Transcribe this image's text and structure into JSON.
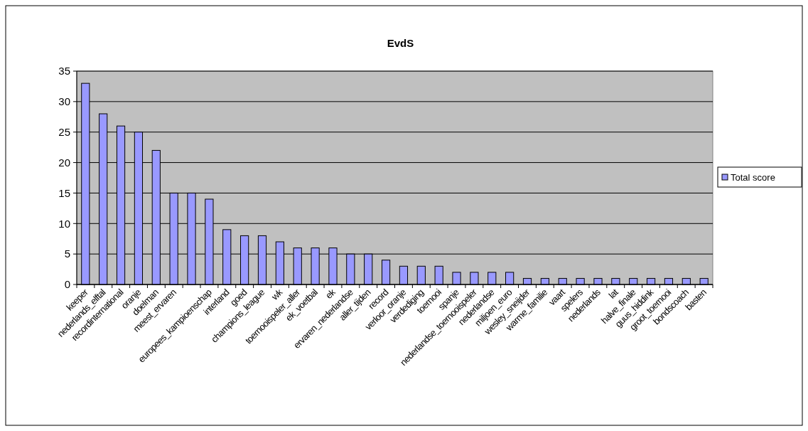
{
  "chart_data": {
    "type": "bar",
    "title": "EvdS",
    "categories": [
      "keeper",
      "nederlands_elftal",
      "recordinternational",
      "oranje",
      "doelman",
      "meest_ervaren",
      null,
      "europees_kampioenschap",
      "interland",
      "goed",
      "champions_league",
      "wk",
      "toernooispeler_aller",
      "ek_voetbal",
      "ek",
      "ervaren_nederlandse",
      "aller_tijden",
      "record",
      "verloor_oranje",
      "verdediging",
      "toernooi",
      "spanje",
      "nederlandse_toernooispeler",
      "nederlandse",
      "miljoen_euro",
      "wesley_sneijder",
      "warme_familie",
      "vaart",
      "spelers",
      "nederlands",
      "lat",
      "halve_finale",
      "guus_hiddink",
      "groot_toernooi",
      "bondscoach",
      "basten"
    ],
    "series": [
      {
        "name": "Total score",
        "color": "#9999ff",
        "values": [
          33,
          28,
          26,
          25,
          22,
          15,
          15,
          14,
          9,
          8,
          8,
          7,
          6,
          6,
          6,
          5,
          5,
          4,
          3,
          3,
          3,
          2,
          2,
          2,
          2,
          1,
          1,
          1,
          1,
          1,
          1,
          1,
          1,
          1,
          1,
          1
        ]
      }
    ],
    "ylim": [
      0,
      35
    ],
    "yticks": [
      0,
      5,
      10,
      15,
      20,
      25,
      30,
      35
    ],
    "grid": "y",
    "legend": "right"
  }
}
